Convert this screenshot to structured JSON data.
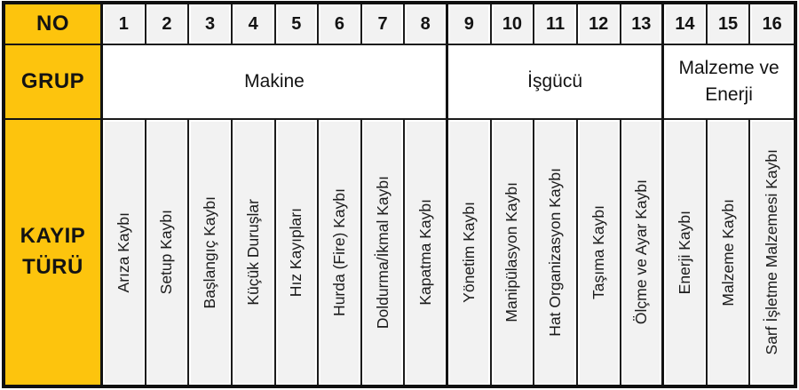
{
  "colors": {
    "header_yellow": "#FDC40D",
    "cell_gray": "#F2F2F2",
    "border_dark": "#131313"
  },
  "row_headers": {
    "no": "NO",
    "grup": "GRUP",
    "kayip_turu": "KAYIP TÜRÜ"
  },
  "groups": [
    {
      "label": "Makine",
      "span": 8
    },
    {
      "label": "İşgücü",
      "span": 5
    },
    {
      "label": "Malzeme ve Enerji",
      "span": 3
    }
  ],
  "columns": [
    {
      "no": "1",
      "label": "Arıza Kaybı"
    },
    {
      "no": "2",
      "label": "Setup Kaybı"
    },
    {
      "no": "3",
      "label": "Başlangıç Kaybı"
    },
    {
      "no": "4",
      "label": "Küçük Duruşlar"
    },
    {
      "no": "5",
      "label": "Hız Kayıpları"
    },
    {
      "no": "6",
      "label": "Hurda (Fire) Kaybı"
    },
    {
      "no": "7",
      "label": "Doldurma/İkmal Kaybı"
    },
    {
      "no": "8",
      "label": "Kapatma Kaybı"
    },
    {
      "no": "9",
      "label": "Yönetim Kaybı"
    },
    {
      "no": "10",
      "label": "Manipülasyon Kaybı"
    },
    {
      "no": "11",
      "label": "Hat Organizasyon Kaybı"
    },
    {
      "no": "12",
      "label": "Taşıma Kaybı"
    },
    {
      "no": "13",
      "label": "Ölçme ve Ayar Kaybı"
    },
    {
      "no": "14",
      "label": "Enerji Kaybı"
    },
    {
      "no": "15",
      "label": "Malzeme Kaybı"
    },
    {
      "no": "16",
      "label": "Sarf İşletme Malzemesi Kaybı"
    }
  ]
}
